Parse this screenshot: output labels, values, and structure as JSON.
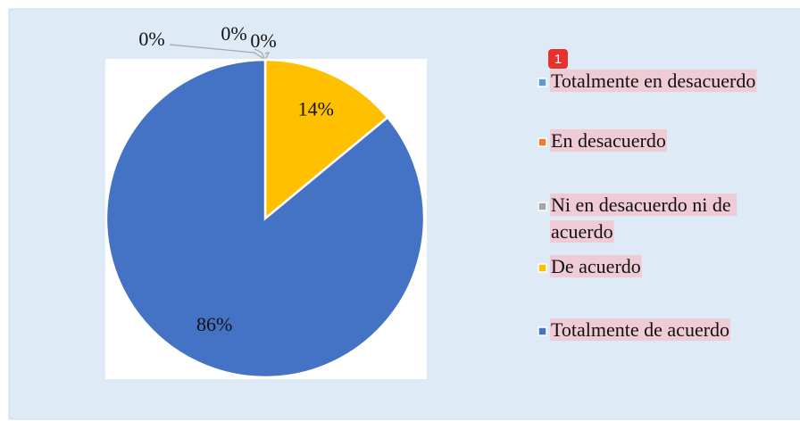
{
  "chart_data": {
    "type": "pie",
    "categories": [
      "Totalmente en desacuerdo",
      "En desacuerdo",
      "Ni en desacuerdo ni de acuerdo",
      "De acuerdo",
      "Totalmente de acuerdo"
    ],
    "values": [
      0,
      0,
      0,
      14,
      86
    ],
    "value_labels": [
      "0%",
      "0%",
      "0%",
      "14%",
      "86%"
    ],
    "colors": [
      "#5b9bd5",
      "#ed7d31",
      "#a5a5a5",
      "#ffc000",
      "#4472c4"
    ],
    "legend": "right",
    "annotation": "1"
  }
}
